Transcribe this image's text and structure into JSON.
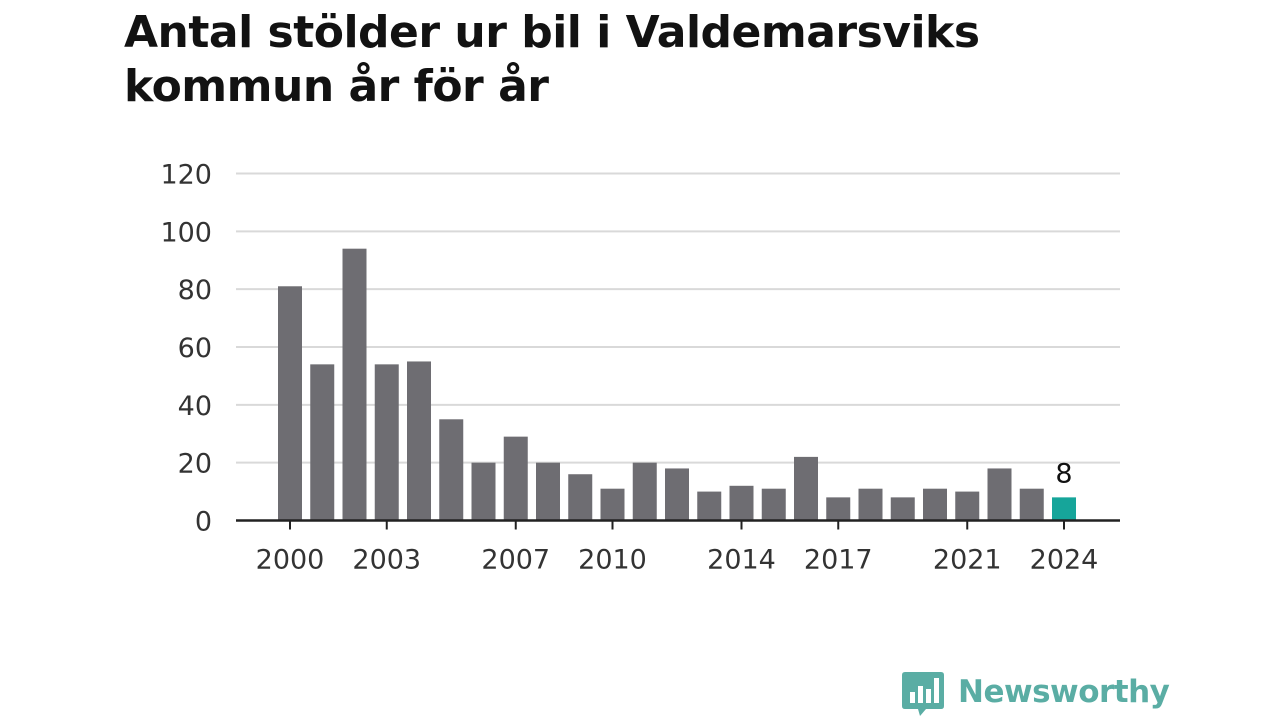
{
  "chart_data": {
    "type": "bar",
    "title_lines": [
      "Antal stölder ur bil i Valdemarsviks",
      "kommun år för år"
    ],
    "xlabel": "",
    "ylabel": "",
    "ylim": [
      0,
      120
    ],
    "yticks": [
      "0",
      "20",
      "40",
      "60",
      "80",
      "100",
      "120"
    ],
    "categories": [
      "2000",
      "2001",
      "2002",
      "2003",
      "2004",
      "2005",
      "2006",
      "2007",
      "2008",
      "2009",
      "2010",
      "2011",
      "2012",
      "2013",
      "2014",
      "2015",
      "2016",
      "2017",
      "2018",
      "2019",
      "2020",
      "2021",
      "2022",
      "2023",
      "2024"
    ],
    "values": [
      81,
      54,
      94,
      54,
      55,
      35,
      20,
      29,
      20,
      16,
      11,
      20,
      18,
      10,
      12,
      11,
      22,
      8,
      11,
      8,
      11,
      10,
      18,
      11,
      8
    ],
    "xtick_labels": [
      "2000",
      "2003",
      "2007",
      "2010",
      "2014",
      "2017",
      "2021",
      "2024"
    ],
    "highlight": {
      "category": "2024",
      "label": "8"
    },
    "grid": true,
    "colors": {
      "bar": "#6e6d72",
      "highlight": "#16a59a",
      "grid": "#d9d9d9",
      "axis": "#222222"
    }
  },
  "brand": {
    "name": "Newsworthy",
    "icon": "chat-bubble-bar-chart-icon",
    "color": "#5aada4"
  }
}
